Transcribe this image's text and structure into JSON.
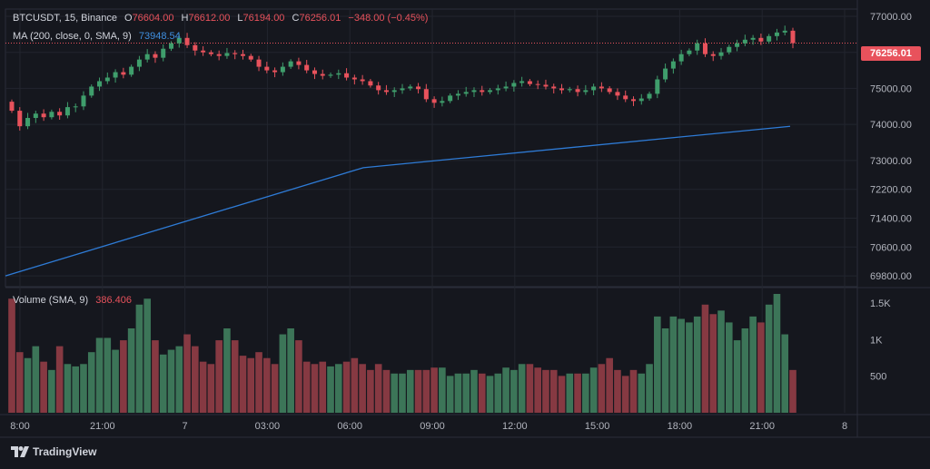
{
  "legend": {
    "symbol": "BTCUSDT, 15, Binance",
    "o_label": "O",
    "o": "76604.00",
    "h_label": "H",
    "h": "76612.00",
    "l_label": "L",
    "l": "76194.00",
    "c_label": "C",
    "c": "76256.01",
    "change": "−348.00 (−0.45%)",
    "ma_label": "MA (200, close, 0, SMA, 9)",
    "ma_value": "73948.54",
    "volume_label": "Volume (SMA, 9)",
    "volume_value": "386.406"
  },
  "last_price": "76256.01",
  "brand": "TradingView",
  "colors": {
    "up": "#3f9e6c",
    "down": "#e8525c",
    "ma": "#2e7bd6",
    "grid": "#22252e",
    "bg": "#15171e"
  },
  "chart_data": {
    "type": "candlestick",
    "price_axis": {
      "ticks": [
        "77000.00",
        "76000.00",
        "75000.00",
        "74000.00",
        "73000.00",
        "72200.00",
        "71400.00",
        "70600.00",
        "69800.00"
      ],
      "ylim": [
        69500,
        77200
      ]
    },
    "volume_axis": {
      "ticks": [
        "1.5K",
        "1K",
        "500"
      ],
      "ylim": [
        0,
        1700
      ]
    },
    "time_axis": {
      "ticks": [
        "8:00",
        "21:00",
        "7",
        "03:00",
        "06:00",
        "09:00",
        "12:00",
        "15:00",
        "18:00",
        "21:00",
        "8"
      ]
    },
    "price": [
      74380,
      73950,
      74180,
      74300,
      74200,
      74350,
      74250,
      74480,
      74500,
      74800,
      75050,
      75200,
      75300,
      75450,
      75380,
      75600,
      75800,
      75950,
      75850,
      76100,
      76250,
      76400,
      76200,
      76050,
      76000,
      75950,
      75900,
      75980,
      75950,
      75900,
      75800,
      75600,
      75500,
      75450,
      75600,
      75750,
      75650,
      75500,
      75400,
      75350,
      75380,
      75420,
      75300,
      75250,
      75200,
      75080,
      74950,
      74900,
      74950,
      75000,
      75050,
      74980,
      74700,
      74600,
      74650,
      74800,
      74850,
      74900,
      74950,
      74900,
      74950,
      75000,
      75050,
      75150,
      75200,
      75120,
      75100,
      75050,
      75000,
      74950,
      74980,
      74900,
      74950,
      75050,
      75000,
      74900,
      74800,
      74700,
      74650,
      74720,
      74850,
      75250,
      75550,
      75750,
      75950,
      76050,
      76250,
      75950,
      75900,
      76000,
      76150,
      76250,
      76350,
      76400,
      76300,
      76450,
      76550,
      76600,
      76256
    ],
    "ma200": [
      69800,
      72800,
      73948
    ],
    "volume_level": [
      0.96,
      0.51,
      0.46,
      0.56,
      0.43,
      0.36,
      0.56,
      0.41,
      0.39,
      0.41,
      0.51,
      0.63,
      0.63,
      0.53,
      0.61,
      0.71,
      0.91,
      0.96,
      0.61,
      0.49,
      0.53,
      0.56,
      0.66,
      0.56,
      0.43,
      0.41,
      0.61,
      0.71,
      0.61,
      0.48,
      0.46,
      0.51,
      0.46,
      0.41,
      0.66,
      0.71,
      0.61,
      0.43,
      0.41,
      0.43,
      0.39,
      0.41,
      0.43,
      0.46,
      0.41,
      0.36,
      0.41,
      0.36,
      0.33,
      0.33,
      0.36,
      0.36,
      0.36,
      0.38,
      0.38,
      0.31,
      0.33,
      0.33,
      0.36,
      0.33,
      0.31,
      0.33,
      0.38,
      0.36,
      0.41,
      0.41,
      0.38,
      0.36,
      0.36,
      0.31,
      0.33,
      0.33,
      0.33,
      0.38,
      0.41,
      0.46,
      0.36,
      0.31,
      0.36,
      0.33,
      0.41,
      0.81,
      0.71,
      0.81,
      0.79,
      0.76,
      0.81,
      0.91,
      0.83,
      0.86,
      0.76,
      0.61,
      0.71,
      0.81,
      0.76,
      0.91,
      1.0,
      0.66,
      0.36
    ]
  }
}
